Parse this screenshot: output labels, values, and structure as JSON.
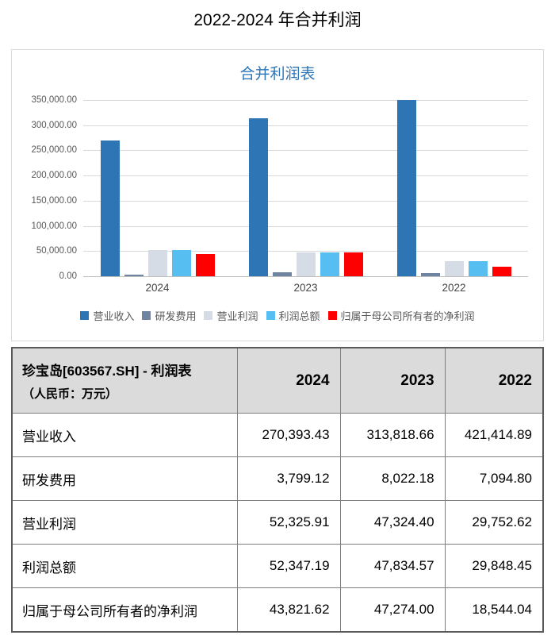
{
  "page": {
    "title": "2022-2024 年合并利润"
  },
  "chart_data": {
    "type": "bar",
    "title": "合并利润表",
    "title_color": "#2E75B6",
    "categories": [
      "2024",
      "2023",
      "2022"
    ],
    "series": [
      {
        "name": "营业收入",
        "color": "#2E75B6",
        "values": [
          270393.43,
          313818.66,
          421414.89
        ]
      },
      {
        "name": "研发费用",
        "color": "#6E84A0",
        "values": [
          3799.12,
          8022.18,
          7094.8
        ]
      },
      {
        "name": "营业利润",
        "color": "#D6DCE5",
        "values": [
          52325.91,
          47324.4,
          29752.62
        ]
      },
      {
        "name": "利润总额",
        "color": "#56BEF0",
        "values": [
          52347.19,
          47834.57,
          29848.45
        ]
      },
      {
        "name": "归属于母公司所有者的净利润",
        "color": "#FF0000",
        "values": [
          43821.62,
          47274.0,
          18544.04
        ]
      }
    ],
    "xlabel": "",
    "ylabel": "",
    "ylim": [
      0,
      350000
    ],
    "yticks": [
      "350,000.00",
      "300,000.00",
      "250,000.00",
      "200,000.00",
      "150,000.00",
      "100,000.00",
      "50,000.00",
      "0.00"
    ],
    "grid": true,
    "legend_position": "bottom",
    "clip_bars_at_ymax": true
  },
  "table": {
    "header": {
      "title": "珍宝岛[603567.SH] - 利润表",
      "subtitle": "（人民币：万元）",
      "columns": [
        "2024",
        "2023",
        "2022"
      ]
    },
    "rows": [
      {
        "label": "营业收入",
        "values": [
          "270,393.43",
          "313,818.66",
          "421,414.89"
        ]
      },
      {
        "label": "研发费用",
        "values": [
          "3,799.12",
          "8,022.18",
          "7,094.80"
        ]
      },
      {
        "label": "营业利润",
        "values": [
          "52,325.91",
          "47,324.40",
          "29,752.62"
        ]
      },
      {
        "label": "利润总额",
        "values": [
          "52,347.19",
          "47,834.57",
          "29,848.45"
        ]
      },
      {
        "label": "归属于母公司所有者的净利润",
        "values": [
          "43,821.62",
          "47,274.00",
          "18,544.04"
        ]
      }
    ]
  }
}
